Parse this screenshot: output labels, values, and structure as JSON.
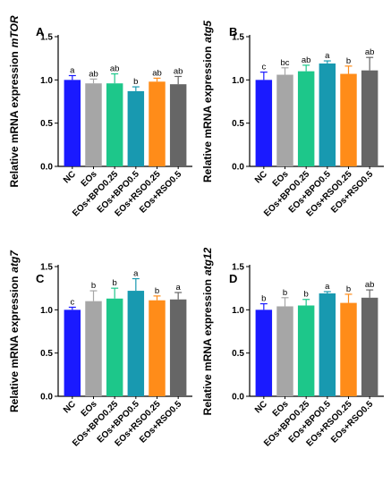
{
  "colors": {
    "bars": [
      "#1a1aff",
      "#a6a6a6",
      "#1dc78a",
      "#1899b0",
      "#ff8c19",
      "#666666"
    ]
  },
  "chart_data": [
    {
      "type": "bar",
      "panel": "A",
      "ylabel_prefix": "Relative mRNA expression",
      "ylabel_gene": "mTOR",
      "categories": [
        "NC",
        "EOs",
        "EOs+BPO0.25",
        "EOs+BPO0.5",
        "EOs+RSO0.25",
        "EOs+RSO0.5"
      ],
      "values": [
        1.0,
        0.96,
        0.96,
        0.87,
        0.98,
        0.95
      ],
      "errors": [
        0.05,
        0.05,
        0.11,
        0.05,
        0.04,
        0.09
      ],
      "sig_labels": [
        "a",
        "ab",
        "ab",
        "b",
        "ab",
        "ab"
      ],
      "ylim": [
        0,
        1.5
      ],
      "yticks": [
        "0.0",
        "0.5",
        "1.0",
        "1.5"
      ]
    },
    {
      "type": "bar",
      "panel": "B",
      "ylabel_prefix": "Relative mRNA expression",
      "ylabel_gene": "atg5",
      "categories": [
        "NC",
        "EOs",
        "EOs+BPO0.25",
        "EOs+BPO0.5",
        "EOs+RSO0.25",
        "EOs+RSO0.5"
      ],
      "values": [
        1.0,
        1.06,
        1.1,
        1.19,
        1.07,
        1.11
      ],
      "errors": [
        0.09,
        0.08,
        0.07,
        0.03,
        0.09,
        0.15
      ],
      "sig_labels": [
        "c",
        "bc",
        "ab",
        "a",
        "b",
        "ab"
      ],
      "ylim": [
        0,
        1.5
      ],
      "yticks": [
        "0.0",
        "0.5",
        "1.0",
        "1.5"
      ]
    },
    {
      "type": "bar",
      "panel": "C",
      "ylabel_prefix": "Relative mRNA expression",
      "ylabel_gene": "atg7",
      "categories": [
        "NC",
        "EOs",
        "EOs+BPO0.25",
        "EOs+BPO0.5",
        "EOs+RSO0.25",
        "EOs+RSO0.5"
      ],
      "values": [
        1.0,
        1.1,
        1.13,
        1.22,
        1.11,
        1.12
      ],
      "errors": [
        0.03,
        0.12,
        0.12,
        0.14,
        0.05,
        0.08
      ],
      "sig_labels": [
        "c",
        "b",
        "b",
        "a",
        "b",
        "a"
      ],
      "ylim": [
        0,
        1.5
      ],
      "yticks": [
        "0.0",
        "0.5",
        "1.0",
        "1.5"
      ]
    },
    {
      "type": "bar",
      "panel": "D",
      "ylabel_prefix": "Relative mRNA expression",
      "ylabel_gene": "atg12",
      "categories": [
        "NC",
        "EOs",
        "EOs+BPO0.25",
        "EOs+BPO0.5",
        "EOs+RSO0.25",
        "EOs+RSO0.5"
      ],
      "values": [
        1.0,
        1.04,
        1.05,
        1.19,
        1.08,
        1.14
      ],
      "errors": [
        0.07,
        0.1,
        0.07,
        0.02,
        0.1,
        0.09
      ],
      "sig_labels": [
        "b",
        "b",
        "b",
        "a",
        "b",
        "ab"
      ],
      "ylim": [
        0,
        1.5
      ],
      "yticks": [
        "0.0",
        "0.5",
        "1.0",
        "1.5"
      ]
    }
  ]
}
